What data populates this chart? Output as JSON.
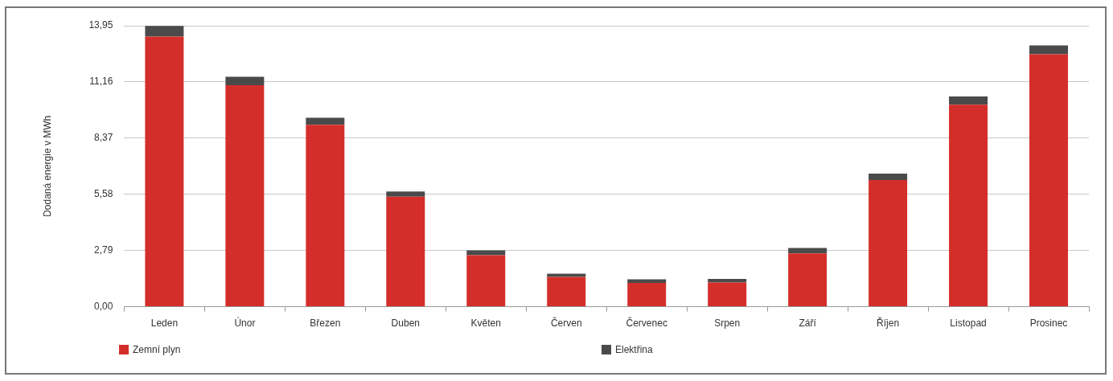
{
  "chart_data": {
    "type": "bar",
    "ylabel": "Dodaná energie v MWh",
    "stacked": true,
    "grid": "y",
    "legend": "bottom",
    "categories": [
      "Leden",
      "Únor",
      "Březen",
      "Duben",
      "Květen",
      "Červen",
      "Červenec",
      "Srpen",
      "Září",
      "Říjen",
      "Listopad",
      "Prosinec"
    ],
    "series": [
      {
        "name": "Zemní plyn",
        "color": "#d42e2a",
        "values": [
          13.41,
          11.0,
          9.03,
          5.46,
          2.56,
          1.48,
          1.18,
          1.2,
          2.65,
          6.29,
          10.03,
          12.53
        ]
      },
      {
        "name": "Elektřina",
        "color": "#4a4a4a",
        "values": [
          0.53,
          0.42,
          0.35,
          0.26,
          0.24,
          0.16,
          0.18,
          0.18,
          0.27,
          0.32,
          0.41,
          0.44
        ]
      }
    ],
    "ylim": [
      0,
      13.95
    ],
    "yticks": [
      {
        "value": 0,
        "label": "0,00"
      },
      {
        "value": 2.79,
        "label": "2,79"
      },
      {
        "value": 5.58,
        "label": "5,58"
      },
      {
        "value": 8.37,
        "label": "8,37"
      },
      {
        "value": 11.16,
        "label": "11,16"
      },
      {
        "value": 13.95,
        "label": "13,95"
      }
    ]
  }
}
